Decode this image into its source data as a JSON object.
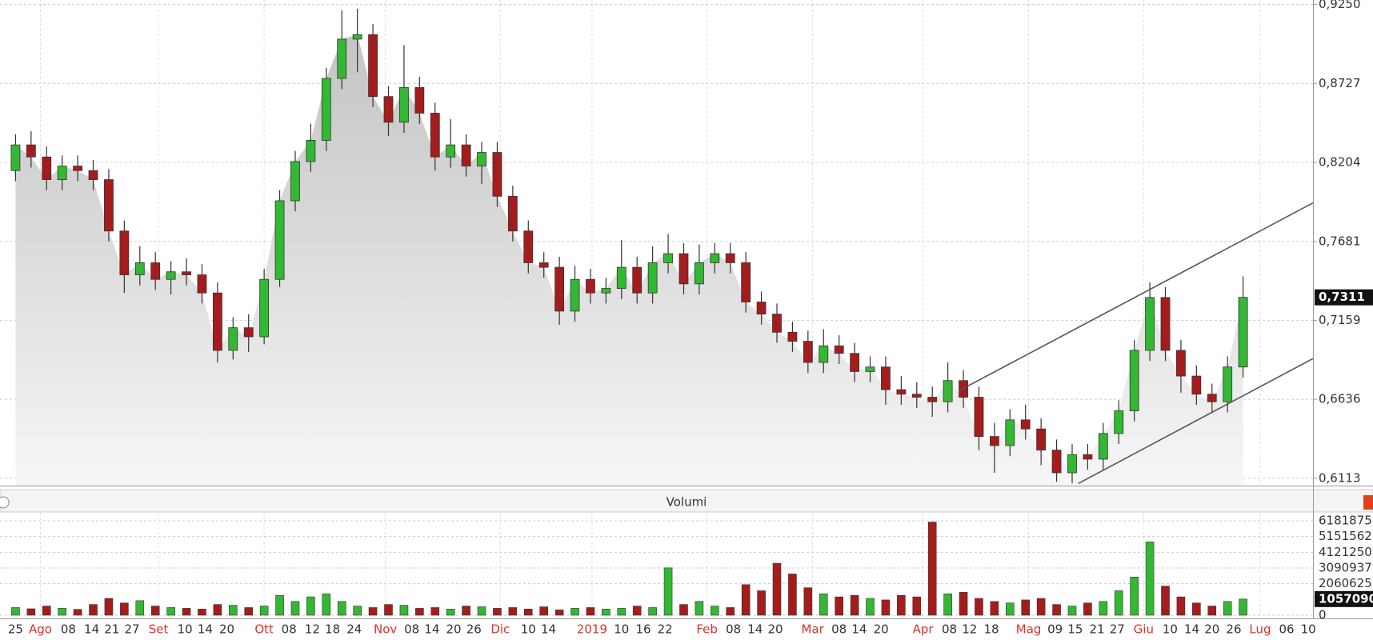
{
  "chart_data": [
    {
      "type": "candlestick",
      "x": [
        1,
        2,
        3,
        4,
        5,
        6,
        7,
        8,
        9,
        10,
        11,
        12,
        13,
        14,
        15,
        16,
        17,
        18,
        19,
        20,
        21,
        22,
        23,
        24,
        25,
        26,
        27,
        28,
        29,
        30,
        31,
        32,
        33,
        34,
        35,
        36,
        37,
        38,
        39,
        40,
        41,
        42,
        43,
        44,
        45,
        46,
        47,
        48,
        49,
        50,
        51,
        52,
        53,
        54,
        55,
        56,
        57,
        58,
        59,
        60,
        61,
        62,
        63,
        64,
        65,
        66,
        67,
        68,
        69,
        70,
        71,
        72,
        73,
        74,
        75,
        76,
        77,
        78,
        79,
        80
      ],
      "open": [
        0.815,
        0.832,
        0.824,
        0.809,
        0.818,
        0.815,
        0.809,
        0.775,
        0.746,
        0.754,
        0.743,
        0.748,
        0.746,
        0.734,
        0.696,
        0.711,
        0.705,
        0.743,
        0.795,
        0.821,
        0.835,
        0.876,
        0.902,
        0.905,
        0.864,
        0.847,
        0.87,
        0.853,
        0.824,
        0.832,
        0.818,
        0.827,
        0.798,
        0.775,
        0.754,
        0.751,
        0.722,
        0.743,
        0.734,
        0.737,
        0.751,
        0.734,
        0.754,
        0.76,
        0.74,
        0.754,
        0.76,
        0.754,
        0.728,
        0.72,
        0.708,
        0.702,
        0.688,
        0.699,
        0.694,
        0.682,
        0.685,
        0.67,
        0.667,
        0.665,
        0.662,
        0.676,
        0.665,
        0.639,
        0.633,
        0.65,
        0.644,
        0.63,
        0.615,
        0.627,
        0.624,
        0.641,
        0.656,
        0.696,
        0.731,
        0.696,
        0.679,
        0.667,
        0.662,
        0.685
      ],
      "high": [
        0.839,
        0.841,
        0.831,
        0.825,
        0.825,
        0.822,
        0.816,
        0.782,
        0.765,
        0.761,
        0.755,
        0.757,
        0.753,
        0.741,
        0.718,
        0.72,
        0.75,
        0.802,
        0.828,
        0.846,
        0.883,
        0.921,
        0.922,
        0.912,
        0.871,
        0.898,
        0.877,
        0.86,
        0.849,
        0.839,
        0.834,
        0.834,
        0.805,
        0.782,
        0.761,
        0.758,
        0.752,
        0.75,
        0.744,
        0.769,
        0.758,
        0.765,
        0.773,
        0.767,
        0.766,
        0.767,
        0.767,
        0.761,
        0.735,
        0.727,
        0.715,
        0.709,
        0.71,
        0.706,
        0.701,
        0.692,
        0.692,
        0.679,
        0.675,
        0.672,
        0.688,
        0.683,
        0.672,
        0.648,
        0.657,
        0.66,
        0.651,
        0.637,
        0.634,
        0.634,
        0.648,
        0.663,
        0.703,
        0.741,
        0.738,
        0.703,
        0.686,
        0.674,
        0.692,
        0.745
      ],
      "low": [
        0.808,
        0.817,
        0.802,
        0.802,
        0.808,
        0.802,
        0.768,
        0.734,
        0.739,
        0.736,
        0.733,
        0.739,
        0.727,
        0.688,
        0.69,
        0.695,
        0.7,
        0.738,
        0.788,
        0.814,
        0.828,
        0.869,
        0.88,
        0.857,
        0.838,
        0.84,
        0.846,
        0.815,
        0.817,
        0.811,
        0.806,
        0.791,
        0.768,
        0.747,
        0.744,
        0.713,
        0.715,
        0.727,
        0.727,
        0.73,
        0.727,
        0.727,
        0.747,
        0.733,
        0.733,
        0.747,
        0.747,
        0.721,
        0.713,
        0.701,
        0.695,
        0.681,
        0.681,
        0.687,
        0.675,
        0.675,
        0.66,
        0.66,
        0.658,
        0.652,
        0.655,
        0.658,
        0.63,
        0.615,
        0.626,
        0.637,
        0.62,
        0.609,
        0.608,
        0.617,
        0.617,
        0.634,
        0.649,
        0.689,
        0.689,
        0.668,
        0.66,
        0.655,
        0.655,
        0.678
      ],
      "close": [
        0.832,
        0.824,
        0.809,
        0.818,
        0.815,
        0.809,
        0.775,
        0.746,
        0.754,
        0.743,
        0.748,
        0.746,
        0.734,
        0.696,
        0.711,
        0.705,
        0.743,
        0.795,
        0.821,
        0.835,
        0.876,
        0.902,
        0.905,
        0.864,
        0.847,
        0.87,
        0.853,
        0.824,
        0.832,
        0.818,
        0.827,
        0.798,
        0.775,
        0.754,
        0.751,
        0.722,
        0.743,
        0.734,
        0.737,
        0.751,
        0.734,
        0.754,
        0.76,
        0.74,
        0.754,
        0.76,
        0.754,
        0.728,
        0.72,
        0.708,
        0.702,
        0.688,
        0.699,
        0.694,
        0.682,
        0.685,
        0.67,
        0.667,
        0.665,
        0.662,
        0.676,
        0.665,
        0.639,
        0.633,
        0.65,
        0.644,
        0.63,
        0.615,
        0.627,
        0.624,
        0.641,
        0.656,
        0.696,
        0.731,
        0.696,
        0.679,
        0.667,
        0.662,
        0.685,
        0.7311
      ],
      "last_label": "0,7311",
      "up_color": "#33b833",
      "down_color": "#a51c1c",
      "area_color": "#d4d4d4",
      "xlim": [
        0,
        84.5
      ],
      "ylim": [
        0.6065,
        0.9279
      ],
      "yticks": [
        {
          "value": 0.925,
          "label": "0,9250"
        },
        {
          "value": 0.8727,
          "label": "0,8727"
        },
        {
          "value": 0.8204,
          "label": "0,8204"
        },
        {
          "value": 0.7681,
          "label": "0,7681"
        },
        {
          "value": 0.7159,
          "label": "0,7159"
        },
        {
          "value": 0.6636,
          "label": "0,6636"
        },
        {
          "value": 0.6113,
          "label": "0,6113"
        }
      ],
      "trend_lines": [
        {
          "x": [
            61.7,
            84.5
          ],
          "y": [
            0.6692,
            0.7936
          ]
        },
        {
          "x": [
            69.4,
            84.5
          ],
          "y": [
            0.6079,
            0.6906
          ]
        }
      ],
      "grid": true
    },
    {
      "type": "volume",
      "title": "Volumi",
      "values": [
        500000,
        420000,
        600000,
        450000,
        380000,
        700000,
        1100000,
        800000,
        950000,
        600000,
        500000,
        450000,
        400000,
        700000,
        650000,
        500000,
        600000,
        1300000,
        900000,
        1200000,
        1400000,
        900000,
        600000,
        500000,
        700000,
        650000,
        450000,
        500000,
        400000,
        600000,
        550000,
        450000,
        500000,
        400000,
        550000,
        350000,
        450000,
        500000,
        400000,
        450000,
        600000,
        500000,
        3100000,
        700000,
        900000,
        600000,
        500000,
        2000000,
        1600000,
        3400000,
        2700000,
        1800000,
        1400000,
        1200000,
        1300000,
        1100000,
        1000000,
        1300000,
        1200000,
        6100000,
        1400000,
        1500000,
        1100000,
        900000,
        800000,
        1000000,
        1100000,
        700000,
        600000,
        800000,
        900000,
        1600000,
        2500000,
        4800000,
        1900000,
        1200000,
        800000,
        600000,
        900000,
        1057090
      ],
      "ylim": [
        0,
        6706000
      ],
      "yticks": [
        6181875,
        5151562,
        4121250,
        3090937,
        2060625,
        0
      ],
      "xticks": [
        {
          "value": 1.0,
          "label": "25"
        },
        {
          "value": 2.6,
          "label": "Ago",
          "color": "#e0302a"
        },
        {
          "value": 4.4,
          "label": "08"
        },
        {
          "value": 5.9,
          "label": "14"
        },
        {
          "value": 7.2,
          "label": "21"
        },
        {
          "value": 8.5,
          "label": "27"
        },
        {
          "value": 10.2,
          "label": "Set",
          "color": "#e0302a"
        },
        {
          "value": 11.9,
          "label": "10"
        },
        {
          "value": 13.2,
          "label": "14"
        },
        {
          "value": 14.6,
          "label": "20"
        },
        {
          "value": 17.0,
          "label": "Ott",
          "color": "#e0302a"
        },
        {
          "value": 18.6,
          "label": "08"
        },
        {
          "value": 20.1,
          "label": "12"
        },
        {
          "value": 21.4,
          "label": "18"
        },
        {
          "value": 22.8,
          "label": "24"
        },
        {
          "value": 24.8,
          "label": "Nov",
          "color": "#e0302a"
        },
        {
          "value": 26.5,
          "label": "08"
        },
        {
          "value": 27.8,
          "label": "14"
        },
        {
          "value": 29.2,
          "label": "20"
        },
        {
          "value": 30.5,
          "label": "26"
        },
        {
          "value": 32.2,
          "label": "Dic",
          "color": "#e0302a"
        },
        {
          "value": 34.0,
          "label": "10"
        },
        {
          "value": 35.3,
          "label": "14"
        },
        {
          "value": 38.1,
          "label": "2019",
          "color": "#e0302a"
        },
        {
          "value": 40.0,
          "label": "10"
        },
        {
          "value": 41.4,
          "label": "16"
        },
        {
          "value": 42.8,
          "label": "22"
        },
        {
          "value": 45.5,
          "label": "Feb",
          "color": "#e0302a"
        },
        {
          "value": 47.2,
          "label": "08"
        },
        {
          "value": 48.6,
          "label": "14"
        },
        {
          "value": 49.9,
          "label": "20"
        },
        {
          "value": 52.3,
          "label": "Mar",
          "color": "#e0302a"
        },
        {
          "value": 54.0,
          "label": "08"
        },
        {
          "value": 55.3,
          "label": "14"
        },
        {
          "value": 56.7,
          "label": "20"
        },
        {
          "value": 59.4,
          "label": "Apr",
          "color": "#e0302a"
        },
        {
          "value": 61.1,
          "label": "08"
        },
        {
          "value": 62.4,
          "label": "12"
        },
        {
          "value": 63.8,
          "label": "18"
        },
        {
          "value": 66.2,
          "label": "Mag",
          "color": "#e0302a"
        },
        {
          "value": 67.9,
          "label": "09"
        },
        {
          "value": 69.2,
          "label": "15"
        },
        {
          "value": 70.6,
          "label": "21"
        },
        {
          "value": 71.9,
          "label": "27"
        },
        {
          "value": 73.6,
          "label": "Giu",
          "color": "#e0302a"
        },
        {
          "value": 75.3,
          "label": "10"
        },
        {
          "value": 76.7,
          "label": "14"
        },
        {
          "value": 78.0,
          "label": "20"
        },
        {
          "value": 79.4,
          "label": "26"
        },
        {
          "value": 81.1,
          "label": "Lug",
          "color": "#e0302a"
        },
        {
          "value": 82.8,
          "label": "06"
        },
        {
          "value": 84.2,
          "label": "10"
        }
      ],
      "grid": true
    }
  ]
}
